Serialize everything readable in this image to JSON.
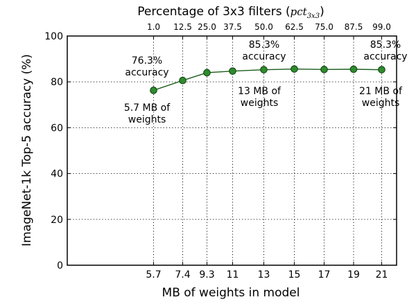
{
  "chart_data": {
    "type": "line",
    "xlabel": "MB of weights in model",
    "ylabel": "ImageNet-1k Top-5 accuracy (%)",
    "x": [
      5.7,
      7.4,
      9.3,
      11,
      13,
      15,
      17,
      19,
      21
    ],
    "x_tick_labels": [
      "5.7",
      "7.4",
      "9.3",
      "11",
      "13",
      "15",
      "17",
      "19",
      "21"
    ],
    "y": [
      76.3,
      80.6,
      84.0,
      84.7,
      85.3,
      85.6,
      85.4,
      85.5,
      85.3
    ],
    "ylim": [
      0,
      100
    ],
    "y_ticks": [
      0,
      20,
      40,
      60,
      80,
      100
    ],
    "top_axis": {
      "title": "Percentage of 3x3 filters (",
      "title_symbol_main": "pct",
      "title_symbol_sub": "3x3",
      "title_close": ")",
      "tick_labels": [
        "1.0",
        "12.5",
        "25.0",
        "37.5",
        "50.0",
        "62.5",
        "75.0",
        "87.5",
        "99.0"
      ]
    },
    "grid": true,
    "line_color": "#1a5c1a",
    "marker_color": "#2e8b2e",
    "annotations": [
      {
        "name": "acc-first",
        "lines": [
          "76.3%",
          "accuracy"
        ]
      },
      {
        "name": "mb-first",
        "lines": [
          "5.7 MB of",
          "weights"
        ]
      },
      {
        "name": "acc-mid",
        "lines": [
          "85.3%",
          "accuracy"
        ]
      },
      {
        "name": "mb-mid",
        "lines": [
          "13 MB of",
          "weights"
        ]
      },
      {
        "name": "acc-last",
        "lines": [
          "85.3%",
          "accuracy"
        ]
      },
      {
        "name": "mb-last",
        "lines": [
          "21 MB of",
          "weights"
        ]
      }
    ]
  }
}
